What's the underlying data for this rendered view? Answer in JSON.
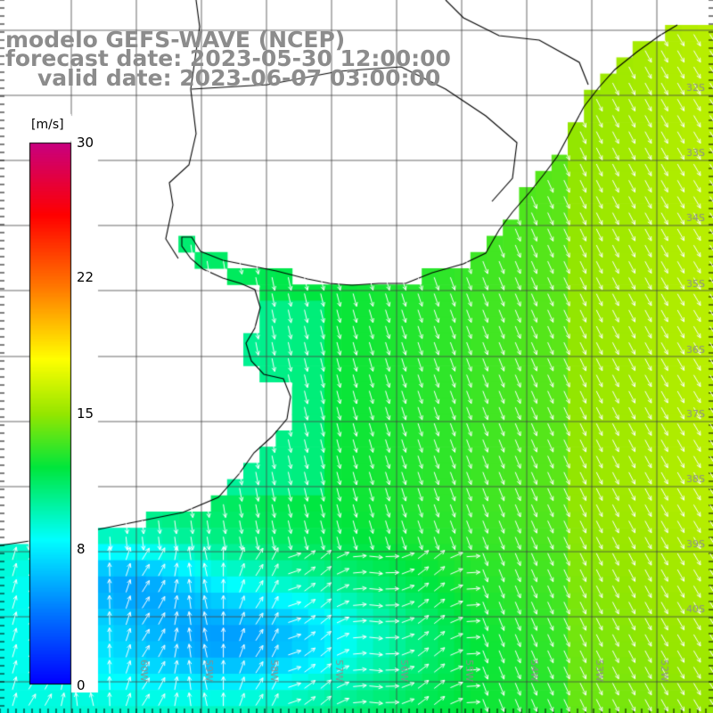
{
  "header": {
    "model": "modelo GEFS-WAVE (NCEP)",
    "forecast": "forecast date: 2023-05-30 12:00:00",
    "valid": "valid date: 2023-06-07 03:00:00"
  },
  "colorbar": {
    "unit": "[m/s]",
    "ticks": [
      "30",
      "22",
      "15",
      "8",
      "0"
    ],
    "tick_values": [
      30,
      22,
      15,
      8,
      0
    ],
    "range": [
      0,
      30
    ],
    "colors": [
      "#0000ff",
      "#00a0ff",
      "#00ffff",
      "#00e000",
      "#ffff00",
      "#ff8000",
      "#ff0000",
      "#c00080"
    ]
  },
  "map": {
    "lat_labels": [
      "32S",
      "33S",
      "34S",
      "35S",
      "36S",
      "37S",
      "38S",
      "39S",
      "40S"
    ],
    "lon_labels": [
      "60W",
      "59W",
      "58W",
      "57W",
      "56W",
      "55W",
      "54W",
      "53W",
      "52W"
    ],
    "colors": {
      "land": "#ffffff",
      "coast": "#000000",
      "grid": "#444444",
      "arrow": "#ffffff"
    }
  }
}
